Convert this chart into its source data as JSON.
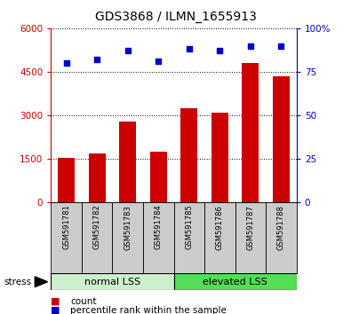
{
  "title": "GDS3868 / ILMN_1655913",
  "samples": [
    "GSM591781",
    "GSM591782",
    "GSM591783",
    "GSM591784",
    "GSM591785",
    "GSM591786",
    "GSM591787",
    "GSM591788"
  ],
  "counts": [
    1550,
    1700,
    2800,
    1750,
    3250,
    3100,
    4800,
    4350
  ],
  "percentile_ranks": [
    80,
    82,
    87,
    81,
    88,
    87,
    90,
    90
  ],
  "left_ylim": [
    0,
    6000
  ],
  "left_yticks": [
    0,
    1500,
    3000,
    4500,
    6000
  ],
  "right_ylim": [
    0,
    100
  ],
  "right_yticks": [
    0,
    25,
    50,
    75,
    100
  ],
  "bar_color": "#cc0000",
  "dot_color": "#0000cc",
  "left_tick_color": "#cc0000",
  "right_tick_color": "#0000cc",
  "group1_label": "normal LSS",
  "group2_label": "elevated LSS",
  "group1_indices": [
    0,
    1,
    2,
    3
  ],
  "group2_indices": [
    4,
    5,
    6,
    7
  ],
  "group1_bg": "#ccf0cc",
  "group2_bg": "#55dd55",
  "xticklabel_area_bg": "#cccccc",
  "stress_label": "stress",
  "legend_count_label": "count",
  "legend_pct_label": "percentile rank within the sample",
  "bar_width": 0.55
}
